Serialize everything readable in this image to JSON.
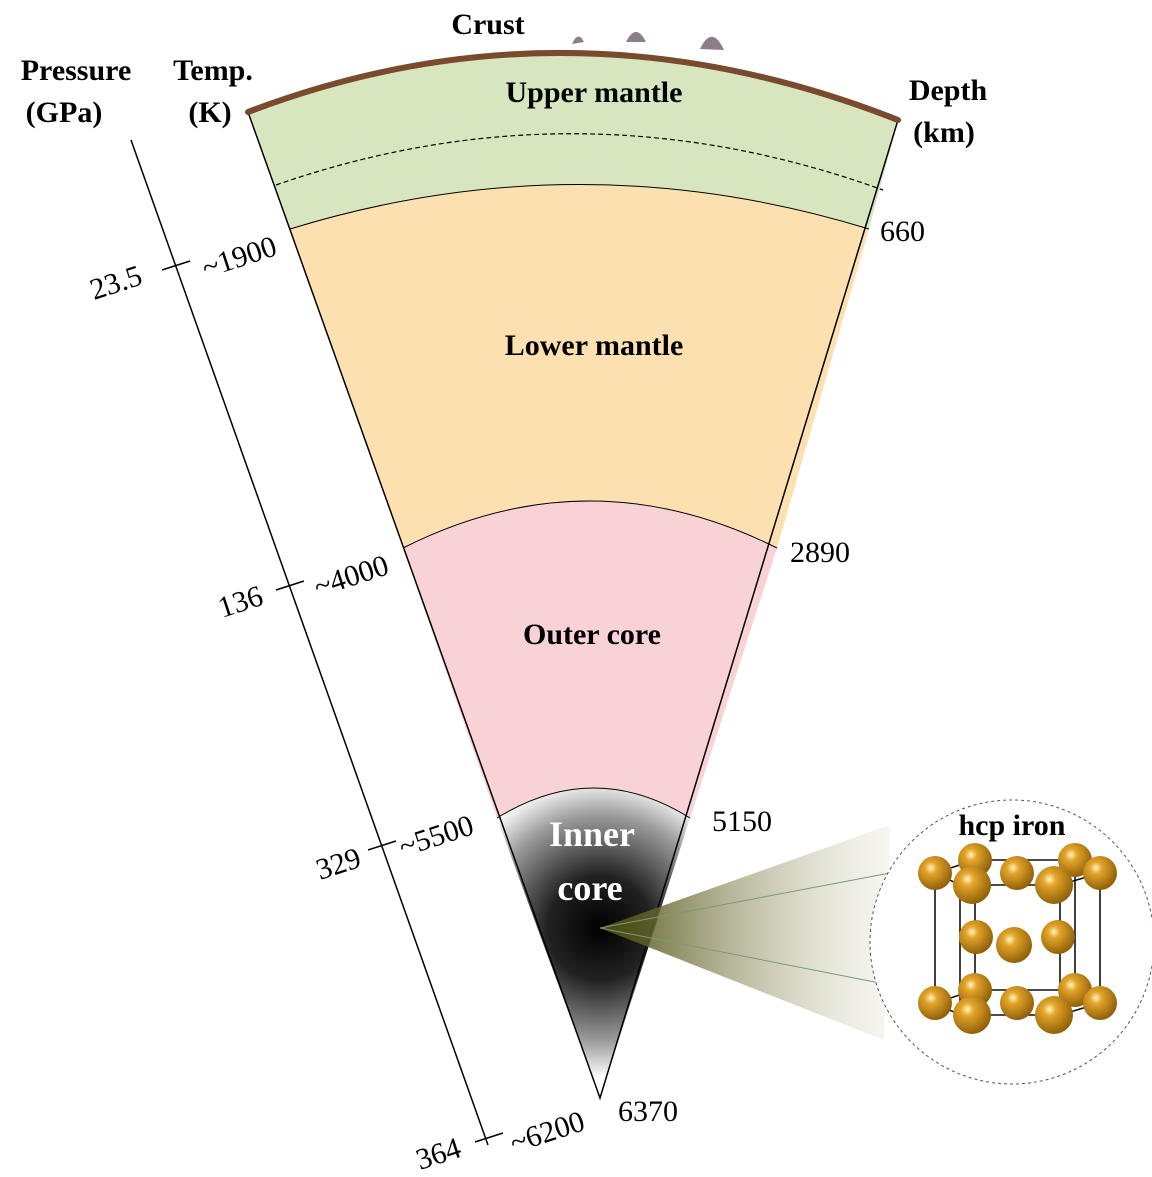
{
  "headers": {
    "crust": "Crust",
    "pressure_line1": "Pressure",
    "pressure_line2": "(GPa)",
    "temp_line1": "Temp.",
    "temp_line2": "(K)",
    "depth_line1": "Depth",
    "depth_line2": "(km)"
  },
  "layers": {
    "upper_mantle": "Upper mantle",
    "lower_mantle": "Lower mantle",
    "outer_core": "Outer core",
    "inner_core_line1": "Inner",
    "inner_core_line2": "core"
  },
  "boundaries": [
    {
      "pressure": "23.5",
      "temperature": "~1900",
      "depth": "660"
    },
    {
      "pressure": "136",
      "temperature": "~4000",
      "depth": "2890"
    },
    {
      "pressure": "329",
      "temperature": "~5500",
      "depth": "5150"
    },
    {
      "pressure": "364",
      "temperature": "~6200",
      "depth": "6370"
    }
  ],
  "inset": {
    "title": "hcp iron"
  },
  "colors": {
    "crust": "#7a4a2e",
    "upper_mantle": "#d8e6c0",
    "lower_mantle": "#fde0b0",
    "outer_core": "#f9d2d6",
    "inner_core_center": "#000000",
    "iron_atom": "#c98a16",
    "mountains": "#8c7d8a"
  }
}
